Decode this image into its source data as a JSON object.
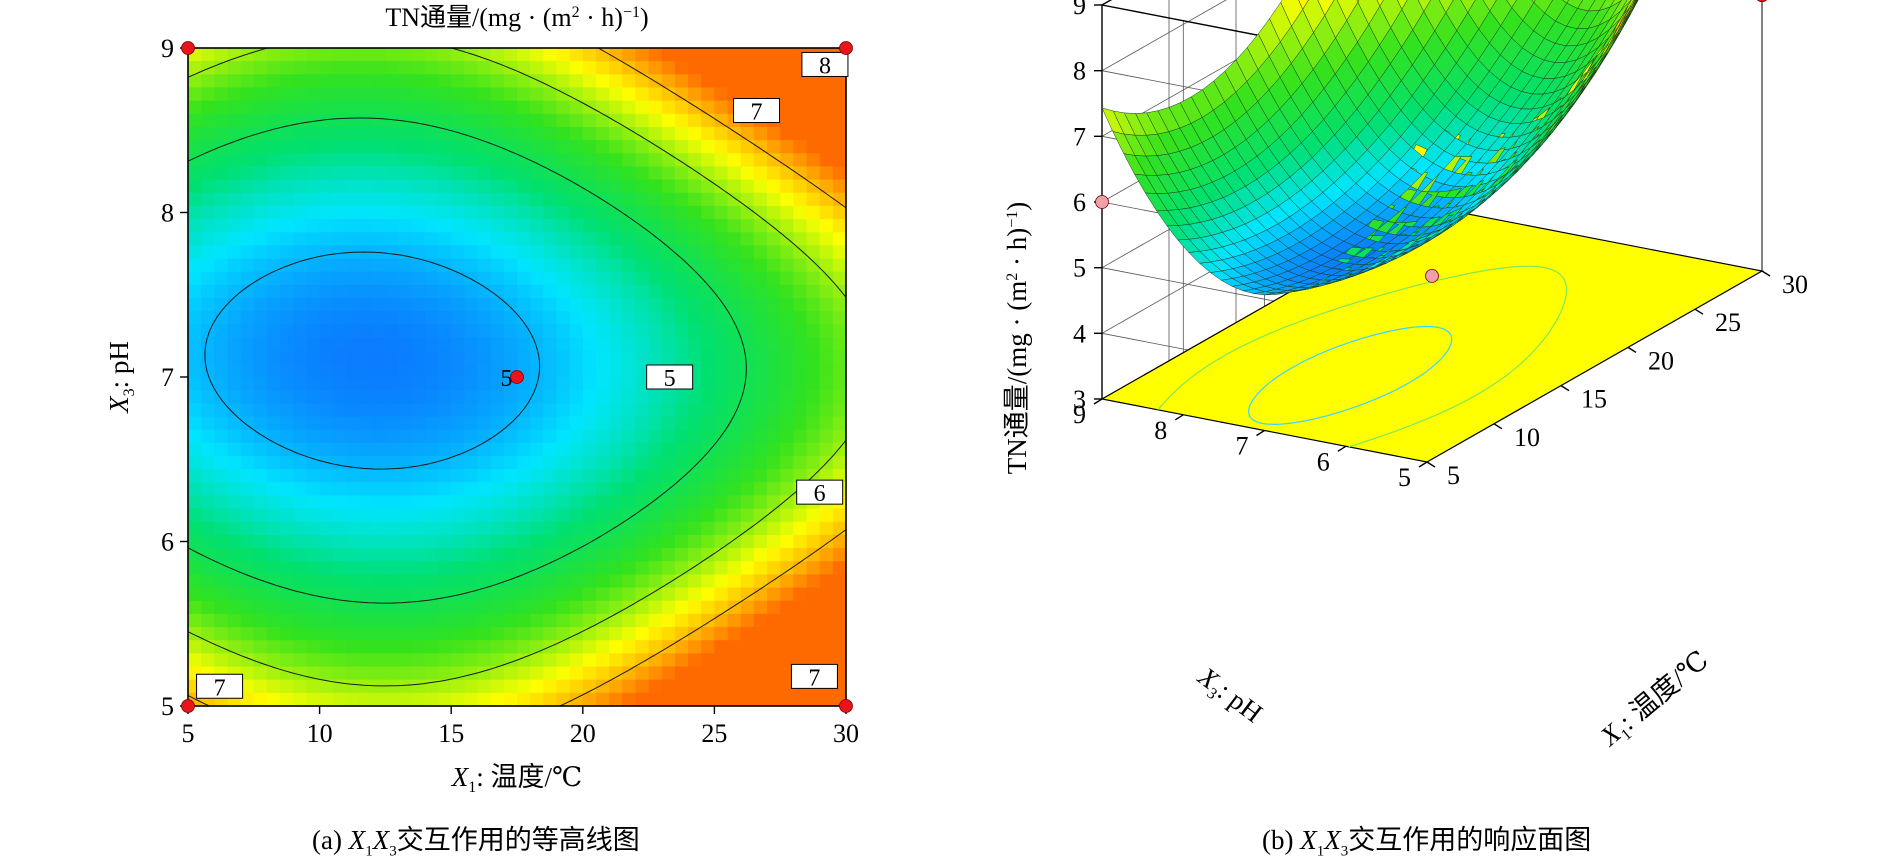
{
  "chart_data": [
    {
      "type": "contour",
      "title": "TN通量/(mg·(m²·h)⁻¹)",
      "xlabel": "X₁: 温度/℃",
      "ylabel": "X₃: pH",
      "xlim": [
        5,
        30
      ],
      "ylim": [
        5,
        9
      ],
      "x_ticks": [
        "5",
        "10",
        "15",
        "20",
        "25",
        "30"
      ],
      "y_ticks": [
        "5",
        "6",
        "7",
        "8",
        "9"
      ],
      "contour_levels": [
        5,
        6,
        7,
        8
      ],
      "contour_labels": [
        "5",
        "5",
        "6",
        "7",
        "7",
        "7",
        "8"
      ],
      "design_points": [
        {
          "x": 5,
          "y": 9
        },
        {
          "x": 30,
          "y": 9
        },
        {
          "x": 17.5,
          "y": 7
        },
        {
          "x": 5,
          "y": 5
        },
        {
          "x": 30,
          "y": 5
        }
      ],
      "colormap": [
        "#0a7cff",
        "#00e5ff",
        "#00e070",
        "#33e21d",
        "#ffff00",
        "#ff6a00"
      ],
      "caption": "(a) X₁X₃交互作用的等高线图"
    },
    {
      "type": "surface",
      "zlabel": "TN通量/(mg·(m²·h)⁻¹)",
      "xlabel": "X₁: 温度/℃",
      "ylabel": "X₃: pH",
      "xlim": [
        5,
        30
      ],
      "ylim": [
        5,
        9
      ],
      "zlim": [
        3,
        9
      ],
      "x_ticks": [
        "5",
        "10",
        "15",
        "20",
        "25",
        "30"
      ],
      "y_ticks": [
        "5",
        "6",
        "7",
        "8",
        "9"
      ],
      "z_ticks": [
        "3",
        "4",
        "5",
        "6",
        "7",
        "8",
        "9"
      ],
      "design_points": [
        {
          "x": 30,
          "y": 9,
          "z": 7.2
        },
        {
          "x": 5,
          "y": 9,
          "z": 6.0
        },
        {
          "x": 17.5,
          "y": 7,
          "z": 3.9
        }
      ],
      "caption": "(b) X₁X₃交互作用的响应面图"
    }
  ],
  "captions": {
    "a_prefix": "(a) ",
    "a_var1": "X",
    "a_sub1": "1",
    "a_var2": "X",
    "a_sub2": "3",
    "a_rest": "交互作用的等高线图",
    "b_prefix": "(b) ",
    "b_var1": "X",
    "b_sub1": "1",
    "b_var2": "X",
    "b_sub2": "3",
    "b_rest": "交互作用的响应面图"
  }
}
